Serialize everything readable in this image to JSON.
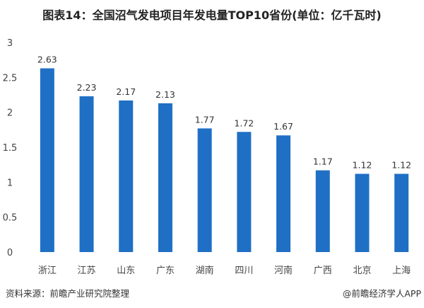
{
  "chart_data": {
    "type": "bar",
    "title": "图表14：全国沼气发电项目年发电量TOP10省份(单位：亿千瓦时)",
    "categories": [
      "浙江",
      "江苏",
      "山东",
      "广东",
      "湖南",
      "四川",
      "河南",
      "广西",
      "北京",
      "上海"
    ],
    "values": [
      2.63,
      2.23,
      2.17,
      2.13,
      1.77,
      1.72,
      1.67,
      1.17,
      1.12,
      1.12
    ],
    "data_labels": [
      "2.63",
      "2.23",
      "2.17",
      "2.13",
      "1.77",
      "1.72",
      "1.67",
      "1.17",
      "1.12",
      "1.12"
    ],
    "ylim": [
      0,
      3
    ],
    "yticks": [
      0,
      0.5,
      1,
      1.5,
      2,
      2.5,
      3
    ],
    "ytick_labels": [
      "0",
      "0.5",
      "1",
      "1.5",
      "2",
      "2.5",
      "3"
    ],
    "xlabel": "",
    "ylabel": "",
    "grid": false,
    "bar_color": "#1f6fc5"
  },
  "footer": {
    "source": "资料来源：前瞻产业研究院整理",
    "credit": "@前瞻经济学人APP"
  }
}
